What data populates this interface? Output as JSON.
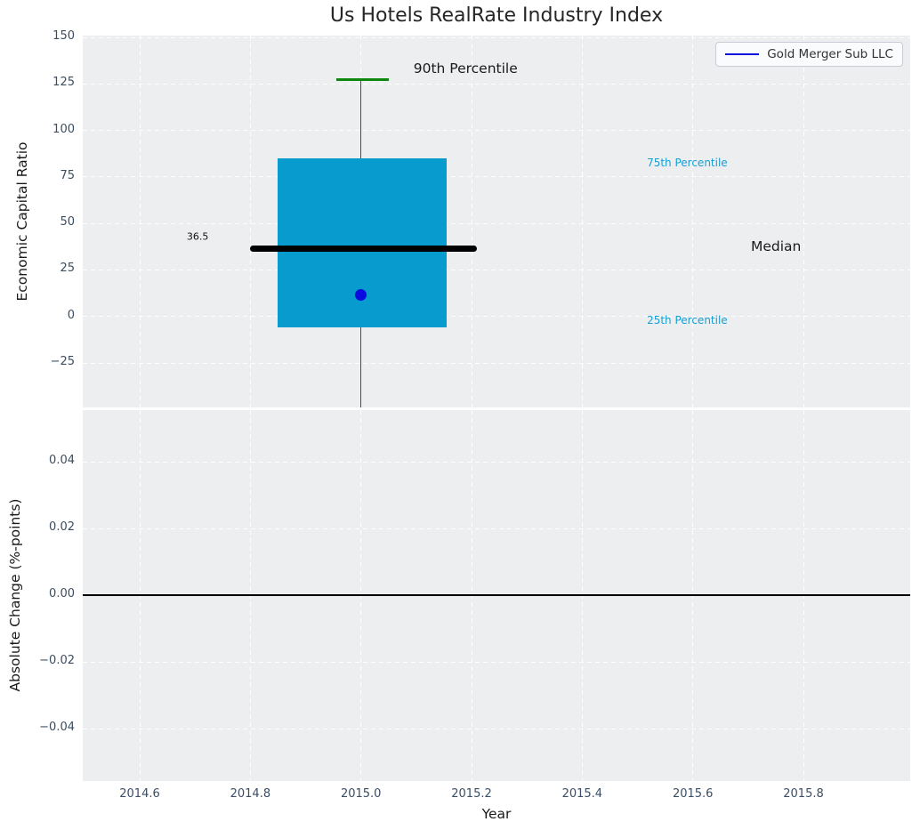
{
  "title": "Us Hotels RealRate Industry Index",
  "legend": {
    "label": "Gold Merger Sub LLC"
  },
  "colors": {
    "axes_background": "#eceef0",
    "grid": "#ffffff",
    "box_fill": "#089cce",
    "median_line": "#000000",
    "whisker": "#4d4d4d",
    "cap_90th": "#0e870e",
    "point": "#0b0be0",
    "legend_line": "#0b0be0",
    "tick_label": "#3b4d63",
    "percentile_text": "#189ed3",
    "zero_line": "#000000"
  },
  "chart_data": [
    {
      "type": "boxplot",
      "title": "Us Hotels RealRate Industry Index",
      "ylabel": "Economic Capital Ratio",
      "xlim": [
        2014.497,
        2015.993
      ],
      "ylim": [
        -48.9,
        151
      ],
      "grid": "white-dashed",
      "legend_position": "upper right",
      "series_name": "Gold Merger Sub LLC",
      "yticks": [
        {
          "label": "150",
          "value": 150
        },
        {
          "label": "125",
          "value": 125
        },
        {
          "label": "100",
          "value": 100
        },
        {
          "label": "75",
          "value": 75
        },
        {
          "label": "50",
          "value": 50
        },
        {
          "label": "25",
          "value": 25
        },
        {
          "label": "0",
          "value": 0
        },
        {
          "label": "−25",
          "value": -25
        }
      ],
      "box": {
        "x_center": 2015.0,
        "box_x": [
          2014.85,
          2015.155
        ],
        "median_x": [
          2014.8,
          2015.21
        ],
        "cap_x": [
          2014.955,
          2015.051
        ],
        "p90": 127.5,
        "q3": 85,
        "median": 36.5,
        "q1": -6,
        "whisker_low_clipped": true,
        "point": {
          "x": 2015.0,
          "y": 11.5
        }
      },
      "annotations": [
        {
          "id": "p90-label",
          "label": "90th Percentile",
          "x": 2015.095,
          "y": 133.5,
          "color": "#1a1a1a",
          "size": 15.5
        },
        {
          "id": "p75-label",
          "label": "75th Percentile",
          "x": 2015.517,
          "y": 82.5,
          "color": "#189ed3",
          "size": 12
        },
        {
          "id": "median-label",
          "label": "Median",
          "x": 2015.705,
          "y": 37.5,
          "color": "#1a1a1a",
          "size": 15.5
        },
        {
          "id": "p25-label",
          "label": "25th Percentile",
          "x": 2015.517,
          "y": -2,
          "color": "#189ed3",
          "size": 12
        },
        {
          "id": "median-value-label",
          "label": "36.5",
          "x": 2014.685,
          "y": 43,
          "color": "#111111",
          "size": 11
        }
      ]
    },
    {
      "type": "line",
      "ylabel": "Absolute Change (%-points)",
      "xlabel": "Year",
      "xlim": [
        2014.497,
        2015.993
      ],
      "ylim": [
        -0.0557,
        0.0555
      ],
      "grid": "white-dashed",
      "zero_line": 0.0,
      "yticks": [
        {
          "label": "0.04",
          "value": 0.04
        },
        {
          "label": "0.02",
          "value": 0.02
        },
        {
          "label": "0.00",
          "value": 0.0
        },
        {
          "label": "−0.02",
          "value": -0.02
        },
        {
          "label": "−0.04",
          "value": -0.04
        }
      ],
      "xticks": [
        {
          "label": "2014.6",
          "value": 2014.6
        },
        {
          "label": "2014.8",
          "value": 2014.8
        },
        {
          "label": "2015.0",
          "value": 2015.0
        },
        {
          "label": "2015.2",
          "value": 2015.2
        },
        {
          "label": "2015.4",
          "value": 2015.4
        },
        {
          "label": "2015.6",
          "value": 2015.6
        },
        {
          "label": "2015.8",
          "value": 2015.8
        }
      ],
      "series": []
    }
  ]
}
